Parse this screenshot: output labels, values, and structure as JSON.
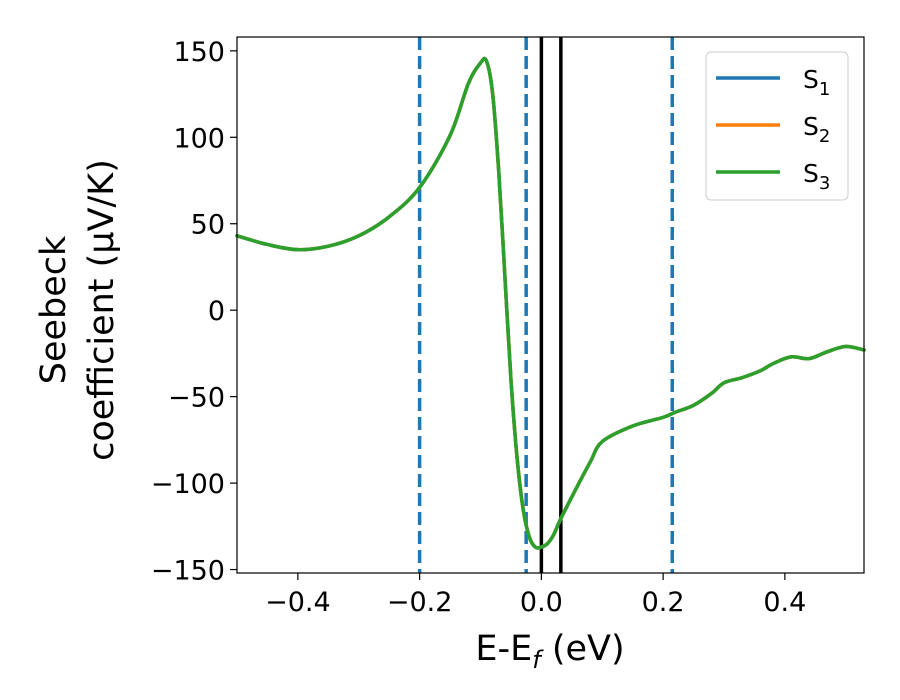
{
  "chart_data": {
    "type": "line",
    "title": "",
    "xlabel": {
      "main": "E-E",
      "sub": "f",
      "tail": " (eV)"
    },
    "ylabel": {
      "line1": "Seebeck",
      "line2": "coefficient  (μV/K)"
    },
    "xlim": [
      -0.5,
      0.53
    ],
    "ylim": [
      -152,
      158
    ],
    "xticks": [
      {
        "value": -0.4,
        "label": "−0.4"
      },
      {
        "value": -0.2,
        "label": "−0.2"
      },
      {
        "value": 0.0,
        "label": "0.0"
      },
      {
        "value": 0.2,
        "label": "0.2"
      },
      {
        "value": 0.4,
        "label": "0.4"
      }
    ],
    "yticks": [
      {
        "value": 150,
        "label": "150"
      },
      {
        "value": 100,
        "label": "100"
      },
      {
        "value": 50,
        "label": "50"
      },
      {
        "value": 0,
        "label": "0"
      },
      {
        "value": -50,
        "label": "−50"
      },
      {
        "value": -100,
        "label": "−100"
      },
      {
        "value": -150,
        "label": "−150"
      }
    ],
    "grid": false,
    "legend_position": "top-right",
    "series": [
      {
        "name": "S",
        "sub": "1",
        "color": "#1f77b4",
        "x": [
          -0.5,
          -0.45,
          -0.4,
          -0.35,
          -0.3,
          -0.25,
          -0.2,
          -0.15,
          -0.12,
          -0.1,
          -0.09,
          -0.08,
          -0.07,
          -0.06,
          -0.05,
          -0.04,
          -0.03,
          -0.02,
          -0.01,
          0.0,
          0.01,
          0.02,
          0.03,
          0.05,
          0.08,
          0.1,
          0.15,
          0.2,
          0.22,
          0.25,
          0.28,
          0.3,
          0.33,
          0.36,
          0.38,
          0.41,
          0.44,
          0.47,
          0.5,
          0.53
        ],
        "y": [
          43,
          38,
          35,
          37,
          43,
          54,
          71,
          101,
          131,
          143,
          144,
          125,
          80,
          20,
          -40,
          -85,
          -115,
          -131,
          -137,
          -137,
          -135,
          -130,
          -122,
          -108,
          -88,
          -76,
          -67,
          -62,
          -59,
          -55,
          -48,
          -42,
          -39,
          -35,
          -31,
          -27,
          -28,
          -24,
          -21,
          -23
        ]
      },
      {
        "name": "S",
        "sub": "2",
        "color": "#ff7f0e",
        "x": [
          -0.5,
          -0.45,
          -0.4,
          -0.35,
          -0.3,
          -0.25,
          -0.2,
          -0.15,
          -0.12,
          -0.1,
          -0.09,
          -0.08,
          -0.07,
          -0.06,
          -0.05,
          -0.04,
          -0.03,
          -0.02,
          -0.01,
          0.0,
          0.01,
          0.02,
          0.03,
          0.05,
          0.08,
          0.1,
          0.15,
          0.2,
          0.22,
          0.25,
          0.28,
          0.3,
          0.33,
          0.36,
          0.38,
          0.41,
          0.44,
          0.47,
          0.5,
          0.53
        ],
        "y": [
          43,
          38,
          35,
          37,
          43,
          54,
          71,
          101,
          131,
          143,
          144,
          125,
          80,
          20,
          -40,
          -85,
          -115,
          -131,
          -137,
          -137,
          -135,
          -130,
          -122,
          -108,
          -88,
          -76,
          -67,
          -62,
          -59,
          -55,
          -48,
          -42,
          -39,
          -35,
          -31,
          -27,
          -28,
          -24,
          -21,
          -23
        ]
      },
      {
        "name": "S",
        "sub": "3",
        "color": "#2ca02c",
        "x": [
          -0.5,
          -0.45,
          -0.4,
          -0.35,
          -0.3,
          -0.25,
          -0.2,
          -0.15,
          -0.12,
          -0.1,
          -0.09,
          -0.08,
          -0.07,
          -0.06,
          -0.05,
          -0.04,
          -0.03,
          -0.02,
          -0.01,
          0.0,
          0.01,
          0.02,
          0.03,
          0.05,
          0.08,
          0.1,
          0.15,
          0.2,
          0.22,
          0.25,
          0.28,
          0.3,
          0.33,
          0.36,
          0.38,
          0.41,
          0.44,
          0.47,
          0.5,
          0.53
        ],
        "y": [
          43,
          38,
          35,
          37,
          43,
          54,
          71,
          101,
          131,
          143,
          144,
          125,
          80,
          20,
          -40,
          -85,
          -115,
          -131,
          -137,
          -137,
          -135,
          -130,
          -122,
          -108,
          -88,
          -76,
          -67,
          -62,
          -59,
          -55,
          -48,
          -42,
          -39,
          -35,
          -31,
          -27,
          -28,
          -24,
          -21,
          -23
        ]
      }
    ],
    "vertical_lines": [
      {
        "x": -0.2,
        "style": "dashed",
        "color": "#1f77b4"
      },
      {
        "x": -0.025,
        "style": "dashed",
        "color": "#1f77b4"
      },
      {
        "x": 0.215,
        "style": "dashed",
        "color": "#1f77b4"
      },
      {
        "x": 0.0,
        "style": "solid",
        "color": "#000000"
      },
      {
        "x": 0.032,
        "style": "solid",
        "color": "#000000"
      }
    ]
  }
}
